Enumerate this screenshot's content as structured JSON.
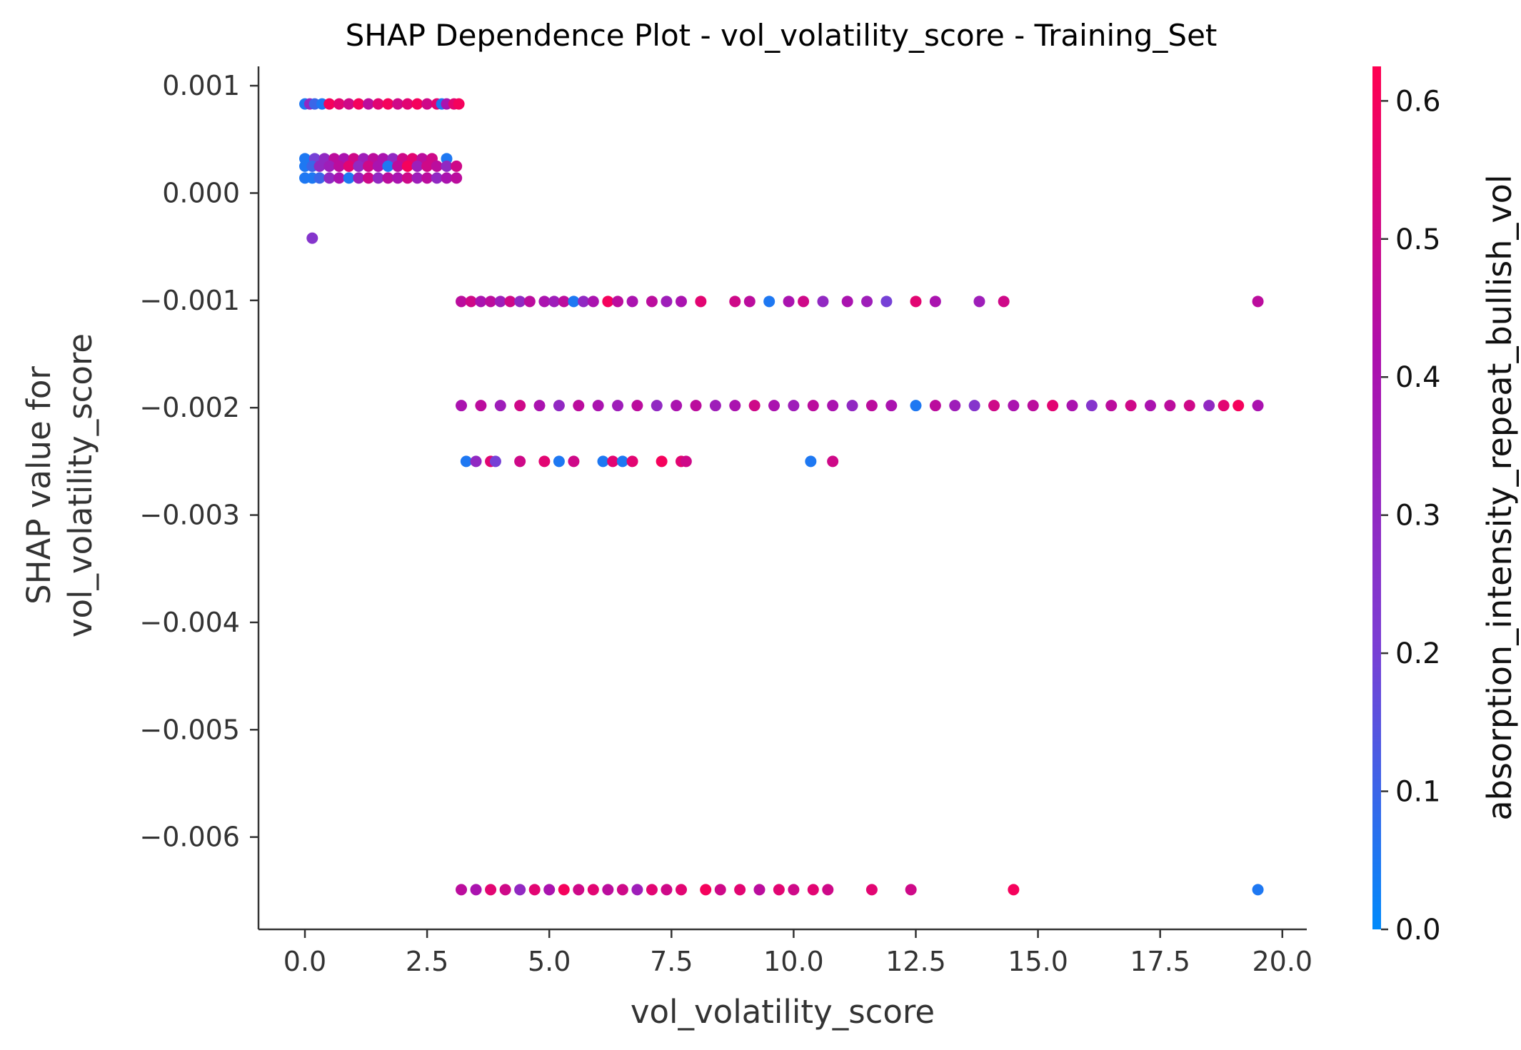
{
  "chart_data": {
    "type": "scatter",
    "title": "SHAP Dependence Plot - vol_volatility_score - Training_Set",
    "xlabel": "vol_volatility_score",
    "ylabel_lines": [
      "SHAP value for",
      "vol_volatility_score"
    ],
    "xlim": [
      -0.95,
      20.5
    ],
    "ylim": [
      -0.00686,
      0.00118
    ],
    "xticks": [
      0.0,
      2.5,
      5.0,
      7.5,
      10.0,
      12.5,
      15.0,
      17.5,
      20.0
    ],
    "xtick_labels": [
      "0.0",
      "2.5",
      "5.0",
      "7.5",
      "10.0",
      "12.5",
      "15.0",
      "17.5",
      "20.0"
    ],
    "yticks": [
      0.001,
      0.0,
      -0.001,
      -0.002,
      -0.003,
      -0.004,
      -0.005,
      -0.006
    ],
    "ytick_labels": [
      "0.001",
      "0.000",
      "−0.001",
      "−0.002",
      "−0.003",
      "−0.004",
      "−0.005",
      "−0.006"
    ],
    "grid": false,
    "colorbar": {
      "label": "absorption_intensity_repeat_bullish_vol",
      "min": 0.0,
      "max": 0.625,
      "ticks": [
        0.0,
        0.1,
        0.2,
        0.3,
        0.4,
        0.5,
        0.6
      ],
      "tick_labels": [
        "0.0",
        "0.1",
        "0.2",
        "0.3",
        "0.4",
        "0.5",
        "0.6"
      ],
      "colormap": [
        "#008afb",
        "#7b3ed4",
        "#ae0fac",
        "#ff0051"
      ]
    },
    "series": [
      {
        "points": [
          {
            "x": 0.0,
            "y": 0.00083,
            "c": 0.05
          },
          {
            "x": 0.1,
            "y": 0.00083,
            "c": 0.3
          },
          {
            "x": 0.2,
            "y": 0.00083,
            "c": 0.1
          },
          {
            "x": 0.35,
            "y": 0.00083,
            "c": 0.05
          },
          {
            "x": 0.5,
            "y": 0.00083,
            "c": 0.6
          },
          {
            "x": 0.7,
            "y": 0.00083,
            "c": 0.55
          },
          {
            "x": 0.9,
            "y": 0.00083,
            "c": 0.5
          },
          {
            "x": 1.1,
            "y": 0.00083,
            "c": 0.6
          },
          {
            "x": 1.3,
            "y": 0.00083,
            "c": 0.45
          },
          {
            "x": 1.5,
            "y": 0.00083,
            "c": 0.55
          },
          {
            "x": 1.7,
            "y": 0.00083,
            "c": 0.6
          },
          {
            "x": 1.9,
            "y": 0.00083,
            "c": 0.5
          },
          {
            "x": 2.1,
            "y": 0.00083,
            "c": 0.55
          },
          {
            "x": 2.3,
            "y": 0.00083,
            "c": 0.6
          },
          {
            "x": 2.5,
            "y": 0.00083,
            "c": 0.5
          },
          {
            "x": 2.7,
            "y": 0.00083,
            "c": 0.55
          },
          {
            "x": 2.8,
            "y": 0.00083,
            "c": 0.05
          },
          {
            "x": 2.9,
            "y": 0.00083,
            "c": 0.4
          },
          {
            "x": 3.05,
            "y": 0.00083,
            "c": 0.55
          },
          {
            "x": 3.15,
            "y": 0.00083,
            "c": 0.6
          },
          {
            "x": 0.0,
            "y": 0.00032,
            "c": 0.05
          },
          {
            "x": 0.2,
            "y": 0.00032,
            "c": 0.2
          },
          {
            "x": 0.4,
            "y": 0.00032,
            "c": 0.3
          },
          {
            "x": 0.6,
            "y": 0.00032,
            "c": 0.45
          },
          {
            "x": 0.8,
            "y": 0.00032,
            "c": 0.4
          },
          {
            "x": 1.0,
            "y": 0.00032,
            "c": 0.5
          },
          {
            "x": 1.2,
            "y": 0.00032,
            "c": 0.35
          },
          {
            "x": 1.4,
            "y": 0.00032,
            "c": 0.45
          },
          {
            "x": 1.6,
            "y": 0.00032,
            "c": 0.4
          },
          {
            "x": 1.8,
            "y": 0.00032,
            "c": 0.3
          },
          {
            "x": 2.0,
            "y": 0.00032,
            "c": 0.5
          },
          {
            "x": 2.2,
            "y": 0.00032,
            "c": 0.55
          },
          {
            "x": 2.4,
            "y": 0.00032,
            "c": 0.45
          },
          {
            "x": 2.6,
            "y": 0.00032,
            "c": 0.5
          },
          {
            "x": 2.9,
            "y": 0.00032,
            "c": 0.05
          },
          {
            "x": 0.0,
            "y": 0.00025,
            "c": 0.05
          },
          {
            "x": 0.15,
            "y": 0.00025,
            "c": 0.1
          },
          {
            "x": 0.3,
            "y": 0.00025,
            "c": 0.3
          },
          {
            "x": 0.5,
            "y": 0.00025,
            "c": 0.35
          },
          {
            "x": 0.7,
            "y": 0.00025,
            "c": 0.45
          },
          {
            "x": 0.9,
            "y": 0.00025,
            "c": 0.55
          },
          {
            "x": 1.1,
            "y": 0.00025,
            "c": 0.3
          },
          {
            "x": 1.3,
            "y": 0.00025,
            "c": 0.5
          },
          {
            "x": 1.5,
            "y": 0.00025,
            "c": 0.4
          },
          {
            "x": 1.7,
            "y": 0.00025,
            "c": 0.05
          },
          {
            "x": 1.9,
            "y": 0.00025,
            "c": 0.45
          },
          {
            "x": 2.1,
            "y": 0.00025,
            "c": 0.6
          },
          {
            "x": 2.3,
            "y": 0.00025,
            "c": 0.35
          },
          {
            "x": 2.5,
            "y": 0.00025,
            "c": 0.5
          },
          {
            "x": 2.7,
            "y": 0.00025,
            "c": 0.45
          },
          {
            "x": 2.9,
            "y": 0.00025,
            "c": 0.3
          },
          {
            "x": 3.1,
            "y": 0.00025,
            "c": 0.5
          },
          {
            "x": 0.0,
            "y": 0.00014,
            "c": 0.05
          },
          {
            "x": 0.15,
            "y": 0.00014,
            "c": 0.05
          },
          {
            "x": 0.3,
            "y": 0.00014,
            "c": 0.1
          },
          {
            "x": 0.5,
            "y": 0.00014,
            "c": 0.3
          },
          {
            "x": 0.7,
            "y": 0.00014,
            "c": 0.4
          },
          {
            "x": 0.9,
            "y": 0.00014,
            "c": 0.05
          },
          {
            "x": 1.1,
            "y": 0.00014,
            "c": 0.35
          },
          {
            "x": 1.3,
            "y": 0.00014,
            "c": 0.5
          },
          {
            "x": 1.5,
            "y": 0.00014,
            "c": 0.3
          },
          {
            "x": 1.7,
            "y": 0.00014,
            "c": 0.45
          },
          {
            "x": 1.9,
            "y": 0.00014,
            "c": 0.4
          },
          {
            "x": 2.1,
            "y": 0.00014,
            "c": 0.5
          },
          {
            "x": 2.3,
            "y": 0.00014,
            "c": 0.35
          },
          {
            "x": 2.5,
            "y": 0.00014,
            "c": 0.45
          },
          {
            "x": 2.7,
            "y": 0.00014,
            "c": 0.3
          },
          {
            "x": 2.9,
            "y": 0.00014,
            "c": 0.4
          },
          {
            "x": 3.1,
            "y": 0.00014,
            "c": 0.45
          },
          {
            "x": 0.15,
            "y": -0.00042,
            "c": 0.25
          },
          {
            "x": 3.2,
            "y": -0.00101,
            "c": 0.45
          },
          {
            "x": 3.4,
            "y": -0.00101,
            "c": 0.5
          },
          {
            "x": 3.6,
            "y": -0.00101,
            "c": 0.4
          },
          {
            "x": 3.8,
            "y": -0.00101,
            "c": 0.45
          },
          {
            "x": 4.0,
            "y": -0.00101,
            "c": 0.35
          },
          {
            "x": 4.2,
            "y": -0.00101,
            "c": 0.5
          },
          {
            "x": 4.4,
            "y": -0.00101,
            "c": 0.3
          },
          {
            "x": 4.6,
            "y": -0.00101,
            "c": 0.45
          },
          {
            "x": 4.9,
            "y": -0.00101,
            "c": 0.4
          },
          {
            "x": 5.1,
            "y": -0.00101,
            "c": 0.35
          },
          {
            "x": 5.3,
            "y": -0.00101,
            "c": 0.45
          },
          {
            "x": 5.5,
            "y": -0.00101,
            "c": 0.05
          },
          {
            "x": 5.7,
            "y": -0.00101,
            "c": 0.3
          },
          {
            "x": 5.9,
            "y": -0.00101,
            "c": 0.4
          },
          {
            "x": 6.2,
            "y": -0.00101,
            "c": 0.6
          },
          {
            "x": 6.4,
            "y": -0.00101,
            "c": 0.45
          },
          {
            "x": 6.7,
            "y": -0.00101,
            "c": 0.4
          },
          {
            "x": 7.1,
            "y": -0.00101,
            "c": 0.45
          },
          {
            "x": 7.4,
            "y": -0.00101,
            "c": 0.35
          },
          {
            "x": 7.7,
            "y": -0.00101,
            "c": 0.4
          },
          {
            "x": 8.1,
            "y": -0.00101,
            "c": 0.55
          },
          {
            "x": 8.8,
            "y": -0.00101,
            "c": 0.5
          },
          {
            "x": 9.1,
            "y": -0.00101,
            "c": 0.45
          },
          {
            "x": 9.5,
            "y": -0.00101,
            "c": 0.05
          },
          {
            "x": 9.9,
            "y": -0.00101,
            "c": 0.4
          },
          {
            "x": 10.2,
            "y": -0.00101,
            "c": 0.5
          },
          {
            "x": 10.6,
            "y": -0.00101,
            "c": 0.3
          },
          {
            "x": 11.1,
            "y": -0.00101,
            "c": 0.4
          },
          {
            "x": 11.5,
            "y": -0.00101,
            "c": 0.35
          },
          {
            "x": 11.9,
            "y": -0.00101,
            "c": 0.2
          },
          {
            "x": 12.5,
            "y": -0.00101,
            "c": 0.55
          },
          {
            "x": 12.9,
            "y": -0.00101,
            "c": 0.4
          },
          {
            "x": 13.8,
            "y": -0.00101,
            "c": 0.35
          },
          {
            "x": 14.3,
            "y": -0.00101,
            "c": 0.5
          },
          {
            "x": 19.5,
            "y": -0.00101,
            "c": 0.45
          },
          {
            "x": 3.2,
            "y": -0.00198,
            "c": 0.4
          },
          {
            "x": 3.6,
            "y": -0.00198,
            "c": 0.45
          },
          {
            "x": 4.0,
            "y": -0.00198,
            "c": 0.35
          },
          {
            "x": 4.4,
            "y": -0.00198,
            "c": 0.5
          },
          {
            "x": 4.8,
            "y": -0.00198,
            "c": 0.4
          },
          {
            "x": 5.2,
            "y": -0.00198,
            "c": 0.3
          },
          {
            "x": 5.6,
            "y": -0.00198,
            "c": 0.45
          },
          {
            "x": 6.0,
            "y": -0.00198,
            "c": 0.4
          },
          {
            "x": 6.4,
            "y": -0.00198,
            "c": 0.35
          },
          {
            "x": 6.8,
            "y": -0.00198,
            "c": 0.45
          },
          {
            "x": 7.2,
            "y": -0.00198,
            "c": 0.3
          },
          {
            "x": 7.6,
            "y": -0.00198,
            "c": 0.4
          },
          {
            "x": 8.0,
            "y": -0.00198,
            "c": 0.45
          },
          {
            "x": 8.4,
            "y": -0.00198,
            "c": 0.35
          },
          {
            "x": 8.8,
            "y": -0.00198,
            "c": 0.4
          },
          {
            "x": 9.2,
            "y": -0.00198,
            "c": 0.5
          },
          {
            "x": 9.6,
            "y": -0.00198,
            "c": 0.4
          },
          {
            "x": 10.0,
            "y": -0.00198,
            "c": 0.35
          },
          {
            "x": 10.4,
            "y": -0.00198,
            "c": 0.45
          },
          {
            "x": 10.8,
            "y": -0.00198,
            "c": 0.4
          },
          {
            "x": 11.2,
            "y": -0.00198,
            "c": 0.3
          },
          {
            "x": 11.6,
            "y": -0.00198,
            "c": 0.45
          },
          {
            "x": 12.0,
            "y": -0.00198,
            "c": 0.4
          },
          {
            "x": 12.5,
            "y": -0.00198,
            "c": 0.05
          },
          {
            "x": 12.9,
            "y": -0.00198,
            "c": 0.45
          },
          {
            "x": 13.3,
            "y": -0.00198,
            "c": 0.35
          },
          {
            "x": 13.7,
            "y": -0.00198,
            "c": 0.25
          },
          {
            "x": 14.1,
            "y": -0.00198,
            "c": 0.5
          },
          {
            "x": 14.5,
            "y": -0.00198,
            "c": 0.4
          },
          {
            "x": 14.9,
            "y": -0.00198,
            "c": 0.45
          },
          {
            "x": 15.3,
            "y": -0.00198,
            "c": 0.55
          },
          {
            "x": 15.7,
            "y": -0.00198,
            "c": 0.4
          },
          {
            "x": 16.1,
            "y": -0.00198,
            "c": 0.25
          },
          {
            "x": 16.5,
            "y": -0.00198,
            "c": 0.45
          },
          {
            "x": 16.9,
            "y": -0.00198,
            "c": 0.5
          },
          {
            "x": 17.3,
            "y": -0.00198,
            "c": 0.4
          },
          {
            "x": 17.7,
            "y": -0.00198,
            "c": 0.45
          },
          {
            "x": 18.1,
            "y": -0.00198,
            "c": 0.5
          },
          {
            "x": 18.5,
            "y": -0.00198,
            "c": 0.3
          },
          {
            "x": 18.8,
            "y": -0.00198,
            "c": 0.55
          },
          {
            "x": 19.1,
            "y": -0.00198,
            "c": 0.6
          },
          {
            "x": 19.5,
            "y": -0.00198,
            "c": 0.4
          },
          {
            "x": 3.3,
            "y": -0.0025,
            "c": 0.05
          },
          {
            "x": 3.5,
            "y": -0.0025,
            "c": 0.3
          },
          {
            "x": 3.8,
            "y": -0.0025,
            "c": 0.55
          },
          {
            "x": 3.9,
            "y": -0.0025,
            "c": 0.2
          },
          {
            "x": 4.4,
            "y": -0.0025,
            "c": 0.5
          },
          {
            "x": 4.9,
            "y": -0.0025,
            "c": 0.55
          },
          {
            "x": 5.2,
            "y": -0.0025,
            "c": 0.05
          },
          {
            "x": 5.5,
            "y": -0.0025,
            "c": 0.5
          },
          {
            "x": 6.1,
            "y": -0.0025,
            "c": 0.05
          },
          {
            "x": 6.3,
            "y": -0.0025,
            "c": 0.55
          },
          {
            "x": 6.5,
            "y": -0.0025,
            "c": 0.05
          },
          {
            "x": 6.7,
            "y": -0.0025,
            "c": 0.55
          },
          {
            "x": 7.3,
            "y": -0.0025,
            "c": 0.6
          },
          {
            "x": 7.7,
            "y": -0.0025,
            "c": 0.55
          },
          {
            "x": 7.8,
            "y": -0.0025,
            "c": 0.5
          },
          {
            "x": 10.35,
            "y": -0.0025,
            "c": 0.05
          },
          {
            "x": 10.8,
            "y": -0.0025,
            "c": 0.5
          },
          {
            "x": 3.2,
            "y": -0.00649,
            "c": 0.45
          },
          {
            "x": 3.5,
            "y": -0.00649,
            "c": 0.4
          },
          {
            "x": 3.8,
            "y": -0.00649,
            "c": 0.55
          },
          {
            "x": 4.1,
            "y": -0.00649,
            "c": 0.5
          },
          {
            "x": 4.4,
            "y": -0.00649,
            "c": 0.3
          },
          {
            "x": 4.7,
            "y": -0.00649,
            "c": 0.55
          },
          {
            "x": 5.0,
            "y": -0.00649,
            "c": 0.4
          },
          {
            "x": 5.3,
            "y": -0.00649,
            "c": 0.6
          },
          {
            "x": 5.6,
            "y": -0.00649,
            "c": 0.5
          },
          {
            "x": 5.9,
            "y": -0.00649,
            "c": 0.55
          },
          {
            "x": 6.2,
            "y": -0.00649,
            "c": 0.45
          },
          {
            "x": 6.5,
            "y": -0.00649,
            "c": 0.5
          },
          {
            "x": 6.8,
            "y": -0.00649,
            "c": 0.35
          },
          {
            "x": 7.1,
            "y": -0.00649,
            "c": 0.55
          },
          {
            "x": 7.4,
            "y": -0.00649,
            "c": 0.5
          },
          {
            "x": 7.7,
            "y": -0.00649,
            "c": 0.55
          },
          {
            "x": 8.2,
            "y": -0.00649,
            "c": 0.6
          },
          {
            "x": 8.5,
            "y": -0.00649,
            "c": 0.5
          },
          {
            "x": 8.9,
            "y": -0.00649,
            "c": 0.55
          },
          {
            "x": 9.3,
            "y": -0.00649,
            "c": 0.45
          },
          {
            "x": 9.7,
            "y": -0.00649,
            "c": 0.55
          },
          {
            "x": 10.0,
            "y": -0.00649,
            "c": 0.5
          },
          {
            "x": 10.4,
            "y": -0.00649,
            "c": 0.55
          },
          {
            "x": 10.7,
            "y": -0.00649,
            "c": 0.5
          },
          {
            "x": 11.6,
            "y": -0.00649,
            "c": 0.55
          },
          {
            "x": 12.4,
            "y": -0.00649,
            "c": 0.5
          },
          {
            "x": 14.5,
            "y": -0.00649,
            "c": 0.6
          },
          {
            "x": 19.5,
            "y": -0.00649,
            "c": 0.05
          }
        ]
      }
    ]
  }
}
